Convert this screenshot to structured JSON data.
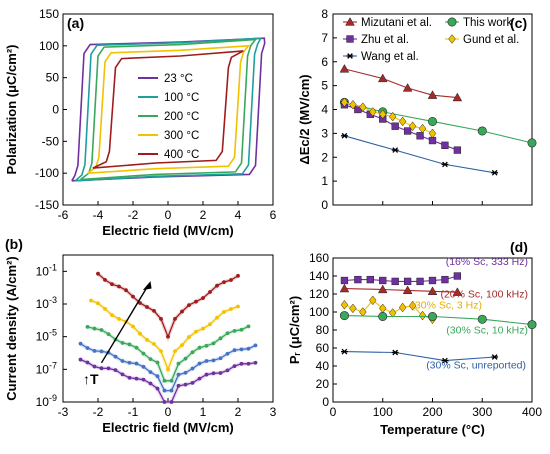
{
  "chart_data": [
    {
      "panel": "(a)",
      "type": "line",
      "xlabel": "Electric field (MV/cm)",
      "ylabel": "Polarization (μC/cm²)",
      "xlim": [
        -6,
        6
      ],
      "ylim": [
        -150,
        150
      ],
      "xticks": [
        -6,
        -4,
        -2,
        0,
        2,
        4,
        6
      ],
      "yticks": [
        -150,
        -100,
        -50,
        0,
        50,
        100,
        150
      ],
      "legend_position": "center",
      "series": [
        {
          "name": "23 °C",
          "color": "#7030a0",
          "emax": 5.5,
          "pmax": 112,
          "pr": 108,
          "ec_pos": 5.0,
          "ec_neg": -4.8
        },
        {
          "name": "100 °C",
          "color": "#1f9ea0",
          "emax": 5.3,
          "pmax": 112,
          "pr": 107,
          "ec_pos": 4.6,
          "ec_neg": -4.4
        },
        {
          "name": "200 °C",
          "color": "#3aa85a",
          "emax": 5.0,
          "pmax": 110,
          "pr": 104,
          "ec_pos": 4.2,
          "ec_neg": -4.0
        },
        {
          "name": "300 °C",
          "color": "#f2c200",
          "emax": 4.6,
          "pmax": 100,
          "pr": 95,
          "ec_pos": 3.8,
          "ec_neg": -3.6
        },
        {
          "name": "400 °C",
          "color": "#a01c1c",
          "emax": 4.3,
          "pmax": 92,
          "pr": 86,
          "ec_pos": 3.1,
          "ec_neg": -3.0
        }
      ]
    },
    {
      "panel": "(b)",
      "type": "line",
      "xlabel": "Electric field (MV/cm)",
      "ylabel": "Current density (A/cm²)",
      "xlim": [
        -3,
        3
      ],
      "ylim_log10": [
        -9,
        0
      ],
      "xticks": [
        -3,
        -2,
        -1,
        0,
        1,
        2,
        3
      ],
      "yticks": [
        "10^-9",
        "10^-7",
        "10^-5",
        "10^-3",
        "10^-1"
      ],
      "annotation": "↑T",
      "series": [
        {
          "color": "#7030a0",
          "x_range": [
            -2.5,
            2.5
          ],
          "jmin_log": -8.5,
          "jmax_log": -6.5
        },
        {
          "color": "#4472c4",
          "x_range": [
            -2.5,
            2.5
          ],
          "jmin_log": -7.8,
          "jmax_log": -5.5
        },
        {
          "color": "#3aa85a",
          "x_range": [
            -2.3,
            2.3
          ],
          "jmin_log": -7.2,
          "jmax_log": -4.3
        },
        {
          "color": "#f2c200",
          "x_range": [
            -2.2,
            2.0
          ],
          "jmin_log": -6.5,
          "jmax_log": -2.8
        },
        {
          "color": "#a01c1c",
          "x_range": [
            -2.0,
            2.0
          ],
          "jmin_log": -4.5,
          "jmax_log": -1.2
        }
      ]
    },
    {
      "panel": "(c)",
      "type": "scatter",
      "xlabel": "",
      "ylabel": "ΔEᴄ/2 (MV/cm)",
      "xlim": [
        0,
        400
      ],
      "ylim": [
        0,
        8
      ],
      "xticks": [
        0,
        100,
        200,
        300,
        400
      ],
      "yticks": [
        0,
        1,
        2,
        3,
        4,
        5,
        6,
        7,
        8
      ],
      "legend_position": "top",
      "series": [
        {
          "name": "Mizutani et al.",
          "color": "#a52a2a",
          "marker": "triangle",
          "x": [
            23,
            100,
            150,
            200,
            250
          ],
          "y": [
            5.7,
            5.3,
            4.9,
            4.6,
            4.5
          ]
        },
        {
          "name": "This work",
          "color": "#3aa85a",
          "marker": "circle",
          "x": [
            23,
            100,
            200,
            300,
            400
          ],
          "y": [
            4.3,
            3.9,
            3.5,
            3.1,
            2.6
          ]
        },
        {
          "name": "Zhu et al.",
          "color": "#7030a0",
          "marker": "square",
          "x": [
            23,
            50,
            75,
            100,
            125,
            150,
            175,
            200,
            225,
            250
          ],
          "y": [
            4.2,
            4.0,
            3.8,
            3.6,
            3.3,
            3.1,
            2.9,
            2.7,
            2.5,
            2.3
          ]
        },
        {
          "name": "Gund et al.",
          "color": "#f2c200",
          "marker": "diamond",
          "x": [
            23,
            40,
            60,
            80,
            100,
            120,
            140,
            160,
            180,
            200
          ],
          "y": [
            4.3,
            4.2,
            4.1,
            3.9,
            3.8,
            3.7,
            3.5,
            3.3,
            3.2,
            3.0
          ]
        },
        {
          "name": "Wang et al.",
          "color": "#2e5fa8",
          "marker": "star",
          "x": [
            23,
            125,
            225,
            325
          ],
          "y": [
            2.9,
            2.3,
            1.7,
            1.35
          ]
        }
      ]
    },
    {
      "panel": "(d)",
      "type": "scatter",
      "xlabel": "Temperature (°C)",
      "ylabel": "Pᵣ (μC/cm²)",
      "xlim": [
        0,
        400
      ],
      "ylim": [
        0,
        160
      ],
      "xticks": [
        0,
        100,
        200,
        300,
        400
      ],
      "yticks": [
        0,
        20,
        40,
        60,
        80,
        100,
        120,
        140,
        160
      ],
      "series": [
        {
          "color": "#7030a0",
          "marker": "square",
          "x": [
            23,
            50,
            75,
            100,
            125,
            150,
            175,
            200,
            225,
            250
          ],
          "y": [
            135,
            136,
            136,
            135,
            134,
            134,
            134,
            135,
            136,
            140
          ]
        },
        {
          "color": "#a52a2a",
          "marker": "triangle",
          "x": [
            23,
            100,
            150,
            200,
            250
          ],
          "y": [
            126,
            125,
            124,
            123,
            122
          ]
        },
        {
          "color": "#f2c200",
          "marker": "diamond",
          "x": [
            23,
            40,
            60,
            80,
            100,
            120,
            140,
            160,
            180,
            200
          ],
          "y": [
            108,
            104,
            100,
            113,
            104,
            99,
            105,
            107,
            96,
            92
          ]
        },
        {
          "color": "#3aa85a",
          "marker": "circle",
          "x": [
            23,
            100,
            200,
            300,
            400
          ],
          "y": [
            96,
            95,
            95,
            92,
            86
          ]
        },
        {
          "color": "#2e5fa8",
          "marker": "star",
          "x": [
            23,
            125,
            225,
            325
          ],
          "y": [
            56,
            55,
            46,
            50
          ]
        }
      ],
      "annotations": [
        {
          "text": "(16% Sc, 333 Hz)",
          "color": "#7030a0"
        },
        {
          "text": "(20% Sc, 100 kHz)",
          "color": "#a52a2a"
        },
        {
          "text": "(30% Sc, 3 Hz)",
          "color": "#e0b000"
        },
        {
          "text": "(30% Sc, 10 kHz)",
          "color": "#3aa85a"
        },
        {
          "text": "(30% Sc, unreported)",
          "color": "#2e5fa8"
        }
      ]
    }
  ]
}
